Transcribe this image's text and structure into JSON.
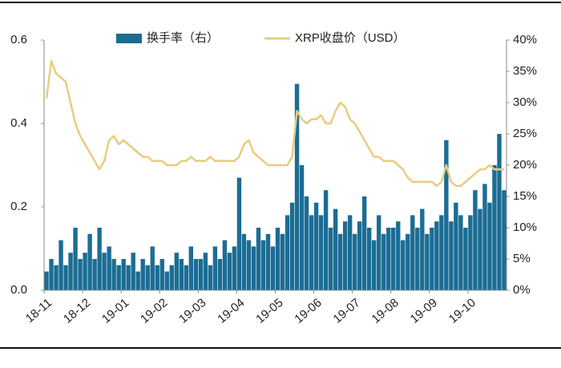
{
  "chart_data": {
    "type": "bar-line",
    "categories": [
      "18-11",
      null,
      null,
      null,
      null,
      null,
      null,
      null,
      "18-12",
      null,
      null,
      null,
      null,
      null,
      null,
      null,
      "19-01",
      null,
      null,
      null,
      null,
      null,
      null,
      null,
      "19-02",
      null,
      null,
      null,
      null,
      null,
      null,
      null,
      "19-03",
      null,
      null,
      null,
      null,
      null,
      null,
      null,
      "19-04",
      null,
      null,
      null,
      null,
      null,
      null,
      null,
      "19-05",
      null,
      null,
      null,
      null,
      null,
      null,
      null,
      "19-06",
      null,
      null,
      null,
      null,
      null,
      null,
      null,
      "19-07",
      null,
      null,
      null,
      null,
      null,
      null,
      null,
      "19-08",
      null,
      null,
      null,
      null,
      null,
      null,
      null,
      "19-09",
      null,
      null,
      null,
      null,
      null,
      null,
      null,
      "19-10",
      null,
      null,
      null,
      null,
      null,
      null,
      null
    ],
    "series": [
      {
        "name": "换手率（右）",
        "type": "bar",
        "axis": "y2",
        "color": "#1b6d94",
        "values": [
          3,
          5,
          4,
          8,
          4,
          6,
          10,
          5,
          6,
          9,
          5,
          10,
          6,
          7,
          5,
          4,
          5,
          4,
          6,
          3,
          5,
          4,
          7,
          4,
          5,
          3,
          4,
          6,
          5,
          4,
          7,
          5,
          5,
          6,
          4,
          7,
          5,
          8,
          6,
          7,
          18,
          9,
          8,
          7,
          10,
          8,
          9,
          7,
          10,
          9,
          12,
          14,
          33,
          20,
          15,
          12,
          14,
          12,
          16,
          10,
          13,
          9,
          11,
          12,
          9,
          11,
          15,
          10,
          8,
          12,
          9,
          10,
          10,
          11,
          8,
          9,
          12,
          10,
          13,
          9,
          10,
          11,
          12,
          24,
          11,
          14,
          12,
          10,
          12,
          16,
          13,
          17,
          14,
          20,
          25,
          16
        ]
      },
      {
        "name": "XRP收盘价（USD）",
        "type": "line",
        "axis": "y",
        "color": "#e8cc80",
        "values": [
          0.46,
          0.55,
          0.52,
          0.51,
          0.5,
          0.45,
          0.4,
          0.37,
          0.35,
          0.33,
          0.31,
          0.29,
          0.31,
          0.36,
          0.37,
          0.35,
          0.36,
          0.35,
          0.34,
          0.33,
          0.32,
          0.32,
          0.31,
          0.31,
          0.31,
          0.3,
          0.3,
          0.3,
          0.31,
          0.31,
          0.32,
          0.31,
          0.31,
          0.31,
          0.32,
          0.31,
          0.31,
          0.31,
          0.31,
          0.31,
          0.32,
          0.35,
          0.36,
          0.33,
          0.32,
          0.31,
          0.3,
          0.3,
          0.3,
          0.3,
          0.3,
          0.32,
          0.43,
          0.41,
          0.4,
          0.41,
          0.41,
          0.42,
          0.4,
          0.4,
          0.43,
          0.45,
          0.44,
          0.41,
          0.4,
          0.38,
          0.36,
          0.34,
          0.32,
          0.32,
          0.31,
          0.31,
          0.31,
          0.3,
          0.29,
          0.27,
          0.26,
          0.26,
          0.26,
          0.26,
          0.26,
          0.25,
          0.26,
          0.3,
          0.26,
          0.25,
          0.25,
          0.26,
          0.27,
          0.28,
          0.29,
          0.29,
          0.3,
          0.29,
          0.29,
          0.29
        ]
      }
    ],
    "ylim": [
      0,
      0.6
    ],
    "yticks": [
      {
        "value": 0,
        "label": "0.0"
      },
      0.2,
      0.4,
      0.6
    ],
    "y2lim": [
      0,
      40
    ],
    "y2ticks": [
      {
        "value": 0,
        "label": "0%"
      },
      {
        "value": 5,
        "label": "5%"
      },
      {
        "value": 10,
        "label": "10%"
      },
      {
        "value": 15,
        "label": "15%"
      },
      {
        "value": 20,
        "label": "20%"
      },
      {
        "value": 25,
        "label": "25%"
      },
      {
        "value": 30,
        "label": "30%"
      },
      {
        "value": 35,
        "label": "35%"
      },
      {
        "value": 40,
        "label": "40%"
      }
    ],
    "legend": "top"
  }
}
